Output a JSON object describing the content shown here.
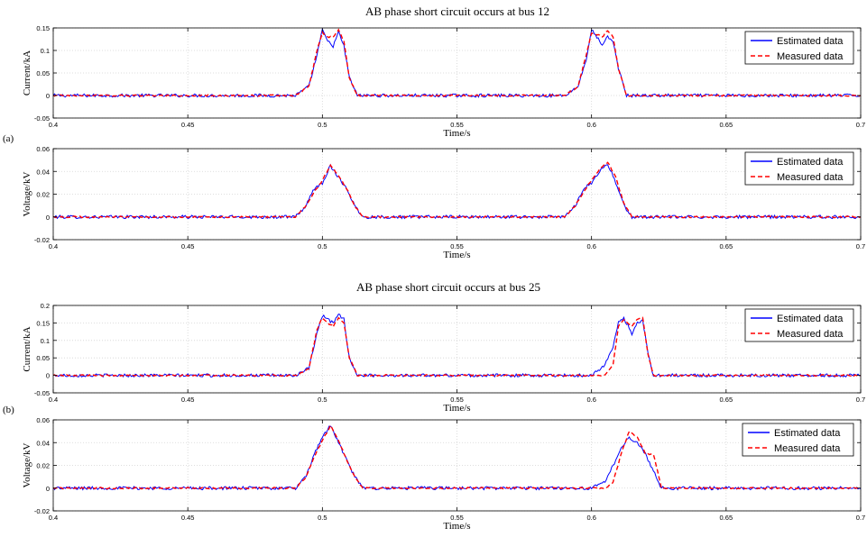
{
  "panels": [
    {
      "label": "(a)",
      "title": "AB phase short circuit occurs at bus 12",
      "charts": [
        {
          "type": "line",
          "ylabel": "Current/kA",
          "xlabel": "Time/s",
          "xlim": [
            0.4,
            0.7
          ],
          "ylim": [
            -0.05,
            0.15
          ],
          "xticks": [
            "0.4",
            "0.45",
            "0.5",
            "0.55",
            "0.6",
            "0.65",
            "0.7"
          ],
          "yticks": [
            "-0.05",
            "0",
            "0.05",
            "0.1",
            "0.15"
          ],
          "grid": true,
          "legend_position": "top-right",
          "series": [
            {
              "name": "Estimated data",
              "color": "#0000ff",
              "style": "solid",
              "x": [
                0.4,
                0.45,
                0.49,
                0.495,
                0.498,
                0.5,
                0.502,
                0.504,
                0.506,
                0.508,
                0.51,
                0.513,
                0.55,
                0.59,
                0.595,
                0.598,
                0.6,
                0.602,
                0.604,
                0.606,
                0.608,
                0.61,
                0.613,
                0.65,
                0.7
              ],
              "y": [
                0,
                0,
                0,
                0.02,
                0.09,
                0.145,
                0.12,
                0.11,
                0.14,
                0.11,
                0.04,
                0,
                0,
                0,
                0.02,
                0.08,
                0.145,
                0.13,
                0.11,
                0.13,
                0.12,
                0.06,
                0,
                0,
                0
              ]
            },
            {
              "name": "Measured data",
              "color": "#ff0000",
              "style": "dashed",
              "x": [
                0.4,
                0.45,
                0.49,
                0.495,
                0.498,
                0.5,
                0.502,
                0.504,
                0.506,
                0.508,
                0.51,
                0.513,
                0.55,
                0.59,
                0.595,
                0.598,
                0.6,
                0.602,
                0.604,
                0.606,
                0.608,
                0.61,
                0.613,
                0.65,
                0.7
              ],
              "y": [
                0,
                0,
                0,
                0.02,
                0.1,
                0.14,
                0.13,
                0.13,
                0.145,
                0.12,
                0.04,
                0,
                0,
                0,
                0.02,
                0.09,
                0.14,
                0.135,
                0.13,
                0.145,
                0.13,
                0.06,
                0,
                0,
                0
              ]
            }
          ]
        },
        {
          "type": "line",
          "ylabel": "Voltage/kV",
          "xlabel": "Time/s",
          "xlim": [
            0.4,
            0.7
          ],
          "ylim": [
            -0.02,
            0.06
          ],
          "xticks": [
            "0.4",
            "0.45",
            "0.5",
            "0.55",
            "0.6",
            "0.65",
            "0.7"
          ],
          "yticks": [
            "-0.02",
            "0",
            "0.02",
            "0.04",
            "0.06"
          ],
          "grid": true,
          "legend_position": "top-right",
          "series": [
            {
              "name": "Estimated data",
              "color": "#0000ff",
              "style": "solid",
              "x": [
                0.4,
                0.45,
                0.49,
                0.494,
                0.497,
                0.5,
                0.503,
                0.506,
                0.509,
                0.512,
                0.515,
                0.55,
                0.59,
                0.594,
                0.597,
                0.6,
                0.603,
                0.606,
                0.609,
                0.612,
                0.615,
                0.65,
                0.7
              ],
              "y": [
                0,
                0,
                0,
                0.01,
                0.025,
                0.03,
                0.045,
                0.035,
                0.025,
                0.01,
                0,
                0,
                0,
                0.01,
                0.025,
                0.03,
                0.04,
                0.047,
                0.03,
                0.01,
                0,
                0,
                0
              ]
            },
            {
              "name": "Measured data",
              "color": "#ff0000",
              "style": "dashed",
              "x": [
                0.4,
                0.45,
                0.49,
                0.494,
                0.497,
                0.5,
                0.503,
                0.506,
                0.509,
                0.512,
                0.515,
                0.55,
                0.59,
                0.594,
                0.597,
                0.6,
                0.603,
                0.606,
                0.609,
                0.612,
                0.615,
                0.65,
                0.7
              ],
              "y": [
                0,
                0,
                0,
                0.01,
                0.022,
                0.032,
                0.046,
                0.036,
                0.025,
                0.01,
                0,
                0,
                0,
                0.01,
                0.022,
                0.032,
                0.042,
                0.048,
                0.035,
                0.012,
                0,
                0,
                0
              ]
            }
          ]
        }
      ]
    },
    {
      "label": "(b)",
      "title": "AB phase short circuit occurs at bus 25",
      "charts": [
        {
          "type": "line",
          "ylabel": "Current/kA",
          "xlabel": "Time/s",
          "xlim": [
            0.4,
            0.7
          ],
          "ylim": [
            -0.05,
            0.2
          ],
          "xticks": [
            "0.4",
            "0.45",
            "0.5",
            "0.55",
            "0.6",
            "0.65",
            "0.7"
          ],
          "yticks": [
            "-0.05",
            "0",
            "0.05",
            "0.1",
            "0.15",
            "0.2"
          ],
          "grid": true,
          "legend_position": "top-right",
          "series": [
            {
              "name": "Estimated data",
              "color": "#0000ff",
              "style": "solid",
              "x": [
                0.4,
                0.45,
                0.49,
                0.495,
                0.498,
                0.5,
                0.502,
                0.504,
                0.506,
                0.508,
                0.51,
                0.513,
                0.55,
                0.59,
                0.6,
                0.605,
                0.608,
                0.61,
                0.612,
                0.615,
                0.617,
                0.619,
                0.621,
                0.623,
                0.65,
                0.7
              ],
              "y": [
                0,
                0,
                0,
                0.02,
                0.12,
                0.17,
                0.16,
                0.15,
                0.175,
                0.16,
                0.05,
                0,
                0,
                0,
                0,
                0.03,
                0.08,
                0.15,
                0.165,
                0.12,
                0.15,
                0.16,
                0.06,
                0,
                0,
                0
              ]
            },
            {
              "name": "Measured data",
              "color": "#ff0000",
              "style": "dashed",
              "x": [
                0.4,
                0.45,
                0.49,
                0.495,
                0.498,
                0.5,
                0.502,
                0.504,
                0.506,
                0.508,
                0.51,
                0.513,
                0.55,
                0.59,
                0.6,
                0.605,
                0.608,
                0.61,
                0.612,
                0.615,
                0.617,
                0.619,
                0.621,
                0.623,
                0.65,
                0.7
              ],
              "y": [
                0,
                0,
                0,
                0.02,
                0.13,
                0.165,
                0.15,
                0.14,
                0.165,
                0.15,
                0.05,
                0,
                0,
                0,
                0,
                0,
                0.03,
                0.14,
                0.16,
                0.14,
                0.16,
                0.165,
                0.06,
                0,
                0,
                0
              ]
            }
          ]
        },
        {
          "type": "line",
          "ylabel": "Voltage/kV",
          "xlabel": "Time/s",
          "xlim": [
            0.4,
            0.7
          ],
          "ylim": [
            -0.02,
            0.06
          ],
          "xticks": [
            "0.4",
            "0.45",
            "0.5",
            "0.55",
            "0.6",
            "0.65",
            "0.7"
          ],
          "yticks": [
            "-0.02",
            "0",
            "0.02",
            "0.04",
            "0.06"
          ],
          "grid": true,
          "legend_position": "top-right",
          "series": [
            {
              "name": "Estimated data",
              "color": "#0000ff",
              "style": "solid",
              "x": [
                0.4,
                0.45,
                0.49,
                0.494,
                0.497,
                0.5,
                0.503,
                0.506,
                0.509,
                0.512,
                0.515,
                0.55,
                0.59,
                0.6,
                0.605,
                0.608,
                0.611,
                0.614,
                0.617,
                0.62,
                0.623,
                0.626,
                0.65,
                0.7
              ],
              "y": [
                0,
                0,
                0,
                0.01,
                0.03,
                0.045,
                0.055,
                0.04,
                0.025,
                0.01,
                0,
                0,
                0,
                0,
                0.005,
                0.02,
                0.035,
                0.045,
                0.04,
                0.03,
                0.015,
                0,
                0,
                0
              ]
            },
            {
              "name": "Measured data",
              "color": "#ff0000",
              "style": "dashed",
              "x": [
                0.4,
                0.45,
                0.49,
                0.494,
                0.497,
                0.5,
                0.503,
                0.506,
                0.509,
                0.512,
                0.515,
                0.55,
                0.59,
                0.6,
                0.605,
                0.608,
                0.611,
                0.614,
                0.617,
                0.62,
                0.623,
                0.626,
                0.65,
                0.7
              ],
              "y": [
                0,
                0,
                0,
                0.01,
                0.028,
                0.042,
                0.055,
                0.042,
                0.025,
                0.01,
                0,
                0,
                0,
                0,
                0,
                0.005,
                0.03,
                0.05,
                0.045,
                0.03,
                0.03,
                0,
                0,
                0
              ]
            }
          ]
        }
      ]
    }
  ]
}
